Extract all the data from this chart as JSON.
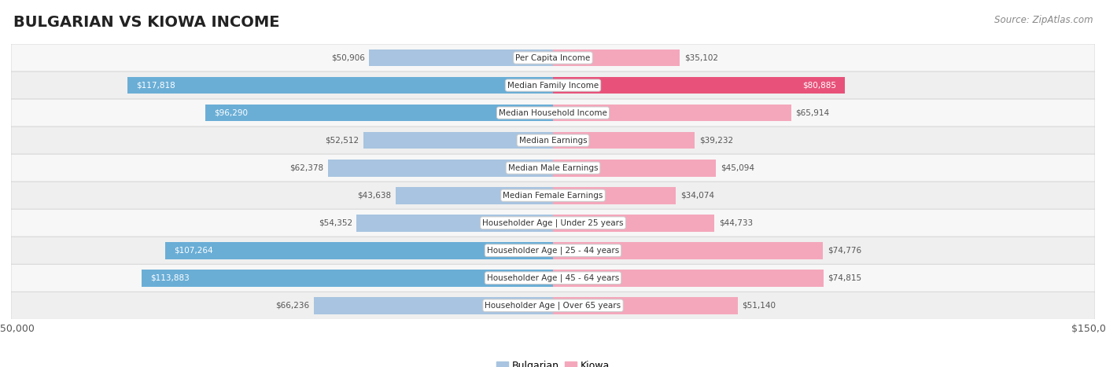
{
  "title": "BULGARIAN VS KIOWA INCOME",
  "source": "Source: ZipAtlas.com",
  "categories": [
    "Per Capita Income",
    "Median Family Income",
    "Median Household Income",
    "Median Earnings",
    "Median Male Earnings",
    "Median Female Earnings",
    "Householder Age | Under 25 years",
    "Householder Age | 25 - 44 years",
    "Householder Age | 45 - 64 years",
    "Householder Age | Over 65 years"
  ],
  "bulgarian_values": [
    50906,
    117818,
    96290,
    52512,
    62378,
    43638,
    54352,
    107264,
    113883,
    66236
  ],
  "kiowa_values": [
    35102,
    80885,
    65914,
    39232,
    45094,
    34074,
    44733,
    74776,
    74815,
    51140
  ],
  "bulgarian_labels": [
    "$50,906",
    "$117,818",
    "$96,290",
    "$52,512",
    "$62,378",
    "$43,638",
    "$54,352",
    "$107,264",
    "$113,883",
    "$66,236"
  ],
  "kiowa_labels": [
    "$35,102",
    "$80,885",
    "$65,914",
    "$39,232",
    "$45,094",
    "$34,074",
    "$44,733",
    "$74,776",
    "$74,815",
    "$51,140"
  ],
  "bulgarian_color_light": "#a8c4e0",
  "bulgarian_color_dark": "#6aaed6",
  "kiowa_color_light": "#f4a7bb",
  "kiowa_color_dark": "#e8527a",
  "high_threshold": 80000,
  "max_value": 150000,
  "bg_color": "#ffffff",
  "row_bg_light": "#f0f0f0",
  "row_bg_dark": "#e0e0e0",
  "title_fontsize": 14,
  "source_fontsize": 8.5,
  "bar_height": 0.62,
  "legend_label_bulgarian": "Bulgarian",
  "legend_label_kiowa": "Kiowa",
  "label_outside_color": "#555555",
  "label_inside_color": "#ffffff",
  "category_fontsize": 7.5,
  "value_fontsize": 7.5
}
